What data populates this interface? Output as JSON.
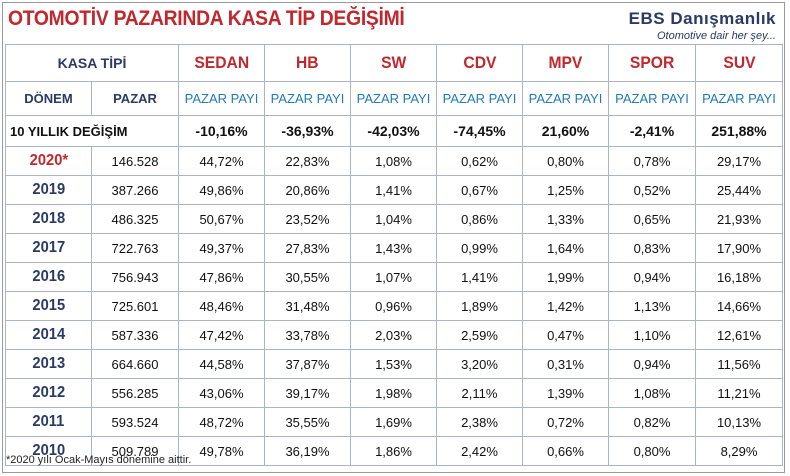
{
  "title": "OTOMOTİV PAZARINDA KASA TİP DEĞİŞİMİ",
  "brand": {
    "name": "EBS Danışmanlık",
    "tagline": "Otomotive dair her şey..."
  },
  "header": {
    "kasa_tipi": "KASA TİPİ",
    "categories": [
      "SEDAN",
      "HB",
      "SW",
      "CDV",
      "MPV",
      "SPOR",
      "SUV"
    ],
    "donem": "DÖNEM",
    "pazar": "PAZAR",
    "pazar_payi": "PAZAR PAYI"
  },
  "change": {
    "label": "10 YILLIK DEĞİŞİM",
    "values": [
      "-10,16%",
      "-36,93%",
      "-42,03%",
      "-74,45%",
      "21,60%",
      "-2,41%",
      "251,88%"
    ]
  },
  "rows": [
    {
      "year": "2020*",
      "market": "146.528",
      "shares": [
        "44,72%",
        "22,83%",
        "1,08%",
        "0,62%",
        "0,80%",
        "0,78%",
        "29,17%"
      ]
    },
    {
      "year": "2019",
      "market": "387.266",
      "shares": [
        "49,86%",
        "20,86%",
        "1,41%",
        "0,67%",
        "1,25%",
        "0,52%",
        "25,44%"
      ]
    },
    {
      "year": "2018",
      "market": "486.325",
      "shares": [
        "50,67%",
        "23,52%",
        "1,04%",
        "0,86%",
        "1,33%",
        "0,65%",
        "21,93%"
      ]
    },
    {
      "year": "2017",
      "market": "722.763",
      "shares": [
        "49,37%",
        "27,83%",
        "1,43%",
        "0,99%",
        "1,64%",
        "0,83%",
        "17,90%"
      ]
    },
    {
      "year": "2016",
      "market": "756.943",
      "shares": [
        "47,86%",
        "30,55%",
        "1,07%",
        "1,41%",
        "1,99%",
        "0,94%",
        "16,18%"
      ]
    },
    {
      "year": "2015",
      "market": "725.601",
      "shares": [
        "48,46%",
        "31,48%",
        "0,96%",
        "1,89%",
        "1,42%",
        "1,13%",
        "14,66%"
      ]
    },
    {
      "year": "2014",
      "market": "587.336",
      "shares": [
        "47,42%",
        "33,78%",
        "2,03%",
        "2,59%",
        "0,47%",
        "1,10%",
        "12,61%"
      ]
    },
    {
      "year": "2013",
      "market": "664.660",
      "shares": [
        "44,58%",
        "37,87%",
        "1,53%",
        "3,20%",
        "0,31%",
        "0,94%",
        "11,56%"
      ]
    },
    {
      "year": "2012",
      "market": "556.285",
      "shares": [
        "43,06%",
        "39,17%",
        "1,98%",
        "2,11%",
        "1,39%",
        "1,08%",
        "11,21%"
      ]
    },
    {
      "year": "2011",
      "market": "593.524",
      "shares": [
        "48,72%",
        "35,55%",
        "1,69%",
        "2,38%",
        "0,72%",
        "0,82%",
        "10,13%"
      ]
    },
    {
      "year": "2010",
      "market": "509.789",
      "shares": [
        "49,78%",
        "36,19%",
        "1,86%",
        "2,42%",
        "0,66%",
        "0,80%",
        "8,29%"
      ]
    }
  ],
  "footnote": "*2020 yılı Ocak-Mayıs dönemine aittir.",
  "colors": {
    "title_red": "#c0282d",
    "navy": "#2a3a63",
    "share_blue": "#1f7ab8",
    "grid": "#aab4c8"
  }
}
